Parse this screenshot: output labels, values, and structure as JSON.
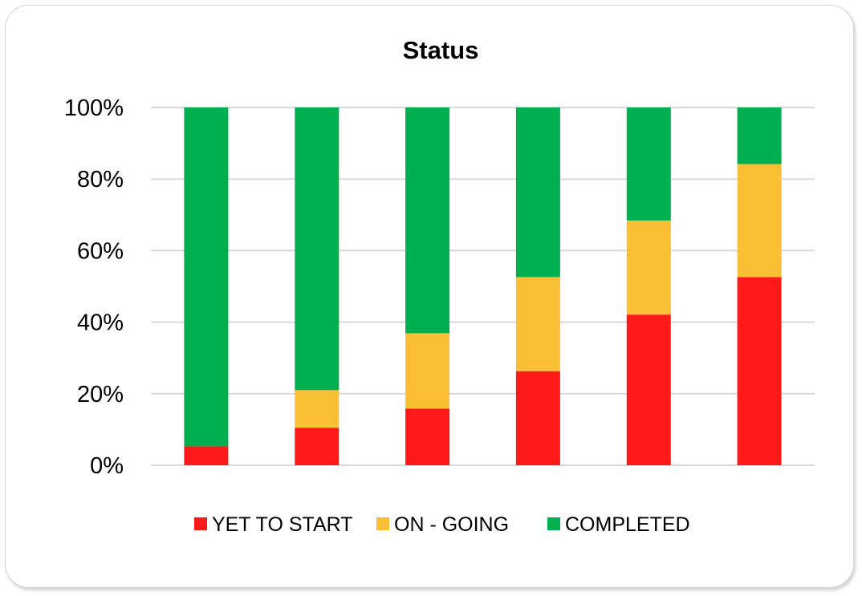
{
  "chart_data": {
    "type": "bar",
    "stacked": true,
    "title": "Status",
    "xlabel": "",
    "ylabel": "",
    "ylim": [
      0,
      100
    ],
    "yticks": [
      "0%",
      "20%",
      "40%",
      "60%",
      "80%",
      "100%"
    ],
    "grid": true,
    "legend_position": "bottom",
    "categories": [
      "",
      "",
      "",
      "",
      "",
      ""
    ],
    "series": [
      {
        "name": "YET TO START",
        "color": "#ff1a1a",
        "values": [
          5.3,
          10.5,
          15.8,
          26.3,
          42.1,
          52.6
        ]
      },
      {
        "name": "ON - GOING",
        "color": "#fbbf36",
        "values": [
          0,
          10.5,
          21.1,
          26.3,
          26.3,
          31.6
        ]
      },
      {
        "name": "COMPLETED",
        "color": "#00b050",
        "values": [
          94.7,
          79.0,
          63.1,
          47.4,
          31.6,
          15.8
        ]
      }
    ]
  }
}
